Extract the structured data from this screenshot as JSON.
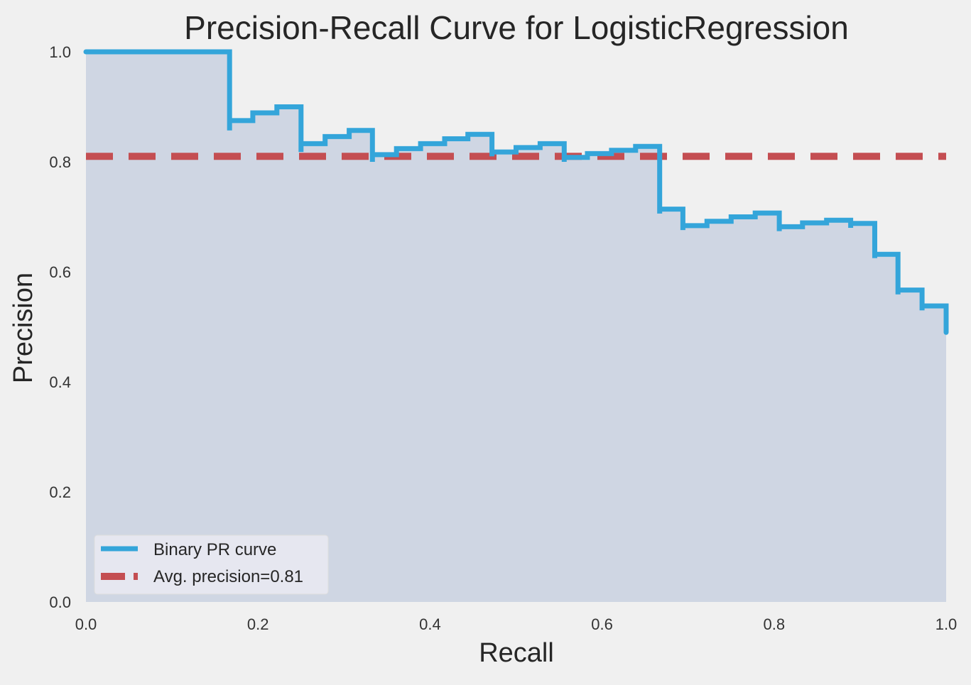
{
  "chart_data": {
    "type": "line",
    "title": "Precision-Recall Curve for LogisticRegression",
    "xlabel": "Recall",
    "ylabel": "Precision",
    "xlim": [
      0.0,
      1.0
    ],
    "ylim": [
      0.0,
      1.0
    ],
    "xticks": [
      "0.0",
      "0.2",
      "0.4",
      "0.6",
      "0.8",
      "1.0"
    ],
    "yticks": [
      "0.0",
      "0.2",
      "0.4",
      "0.6",
      "0.8",
      "1.0"
    ],
    "grid": false,
    "legend_position": "lower-left",
    "series": [
      {
        "name": "Binary PR curve",
        "style": "step",
        "color": "#34a5da",
        "fill_color": "#cfd6e3",
        "points": [
          [
            0.0,
            1.0
          ],
          [
            0.167,
            1.0
          ],
          [
            0.167,
            0.857
          ],
          [
            0.167,
            0.875
          ],
          [
            0.194,
            0.875
          ],
          [
            0.194,
            0.889
          ],
          [
            0.222,
            0.889
          ],
          [
            0.222,
            0.9
          ],
          [
            0.25,
            0.9
          ],
          [
            0.25,
            0.818
          ],
          [
            0.25,
            0.833
          ],
          [
            0.278,
            0.833
          ],
          [
            0.278,
            0.846
          ],
          [
            0.306,
            0.846
          ],
          [
            0.306,
            0.857
          ],
          [
            0.333,
            0.857
          ],
          [
            0.333,
            0.8
          ],
          [
            0.333,
            0.813
          ],
          [
            0.361,
            0.813
          ],
          [
            0.361,
            0.824
          ],
          [
            0.389,
            0.824
          ],
          [
            0.389,
            0.833
          ],
          [
            0.417,
            0.833
          ],
          [
            0.417,
            0.842
          ],
          [
            0.444,
            0.842
          ],
          [
            0.444,
            0.85
          ],
          [
            0.472,
            0.85
          ],
          [
            0.472,
            0.81
          ],
          [
            0.472,
            0.818
          ],
          [
            0.5,
            0.818
          ],
          [
            0.5,
            0.826
          ],
          [
            0.528,
            0.826
          ],
          [
            0.528,
            0.833
          ],
          [
            0.556,
            0.833
          ],
          [
            0.556,
            0.8
          ],
          [
            0.556,
            0.808
          ],
          [
            0.583,
            0.808
          ],
          [
            0.583,
            0.815
          ],
          [
            0.611,
            0.815
          ],
          [
            0.611,
            0.821
          ],
          [
            0.639,
            0.821
          ],
          [
            0.639,
            0.828
          ],
          [
            0.667,
            0.828
          ],
          [
            0.667,
            0.706
          ],
          [
            0.667,
            0.714
          ],
          [
            0.694,
            0.714
          ],
          [
            0.694,
            0.676
          ],
          [
            0.694,
            0.684
          ],
          [
            0.722,
            0.684
          ],
          [
            0.722,
            0.692
          ],
          [
            0.75,
            0.692
          ],
          [
            0.75,
            0.7
          ],
          [
            0.778,
            0.7
          ],
          [
            0.778,
            0.707
          ],
          [
            0.806,
            0.707
          ],
          [
            0.806,
            0.674
          ],
          [
            0.806,
            0.682
          ],
          [
            0.833,
            0.682
          ],
          [
            0.833,
            0.689
          ],
          [
            0.861,
            0.689
          ],
          [
            0.861,
            0.694
          ],
          [
            0.889,
            0.694
          ],
          [
            0.889,
            0.68
          ],
          [
            0.889,
            0.688
          ],
          [
            0.917,
            0.688
          ],
          [
            0.917,
            0.625
          ],
          [
            0.917,
            0.632
          ],
          [
            0.944,
            0.632
          ],
          [
            0.944,
            0.559
          ],
          [
            0.944,
            0.567
          ],
          [
            0.972,
            0.567
          ],
          [
            0.972,
            0.53
          ],
          [
            0.972,
            0.538
          ],
          [
            1.0,
            0.538
          ],
          [
            1.0,
            0.49
          ]
        ]
      },
      {
        "name": "Avg. precision=0.81",
        "style": "dashed",
        "color": "#c44e52",
        "y": 0.81
      }
    ]
  }
}
